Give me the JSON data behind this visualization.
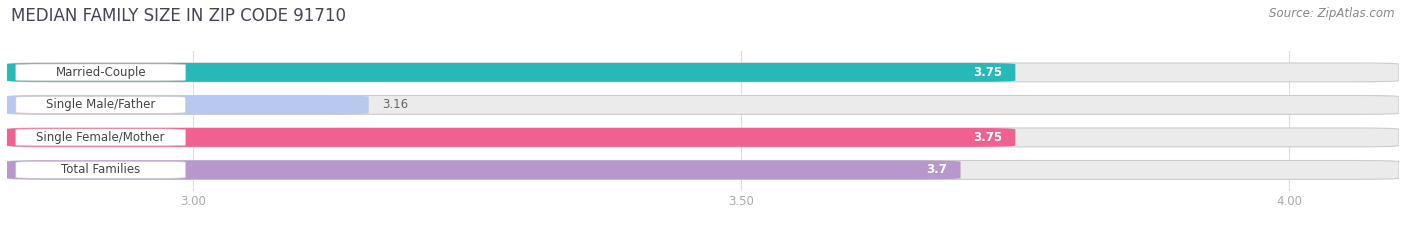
{
  "title": "MEDIAN FAMILY SIZE IN ZIP CODE 91710",
  "source": "Source: ZipAtlas.com",
  "categories": [
    "Married-Couple",
    "Single Male/Father",
    "Single Female/Mother",
    "Total Families"
  ],
  "values": [
    3.75,
    3.16,
    3.75,
    3.7
  ],
  "bar_colors": [
    "#29b8b8",
    "#b8c8ee",
    "#f06090",
    "#b898cc"
  ],
  "value_label_inside": [
    true,
    false,
    true,
    true
  ],
  "xlim": [
    2.83,
    4.1
  ],
  "xstart": 2.83,
  "xticks": [
    3.0,
    3.5,
    4.0
  ],
  "xtick_labels": [
    "3.00",
    "3.50",
    "4.00"
  ],
  "bar_height": 0.58,
  "bar_gap": 0.42,
  "label_fontsize": 8.5,
  "value_fontsize": 8.5,
  "title_fontsize": 12,
  "source_fontsize": 8.5,
  "background_color": "#ffffff",
  "bar_bg_color": "#ebebeb",
  "bar_bg_border": "#d8d8d8",
  "track_border_color": "#cccccc",
  "label_box_color": "#ffffff",
  "label_text_color": "#444444",
  "title_color": "#444455",
  "source_color": "#888888",
  "tick_color": "#aaaaaa",
  "gridline_color": "#dddddd"
}
